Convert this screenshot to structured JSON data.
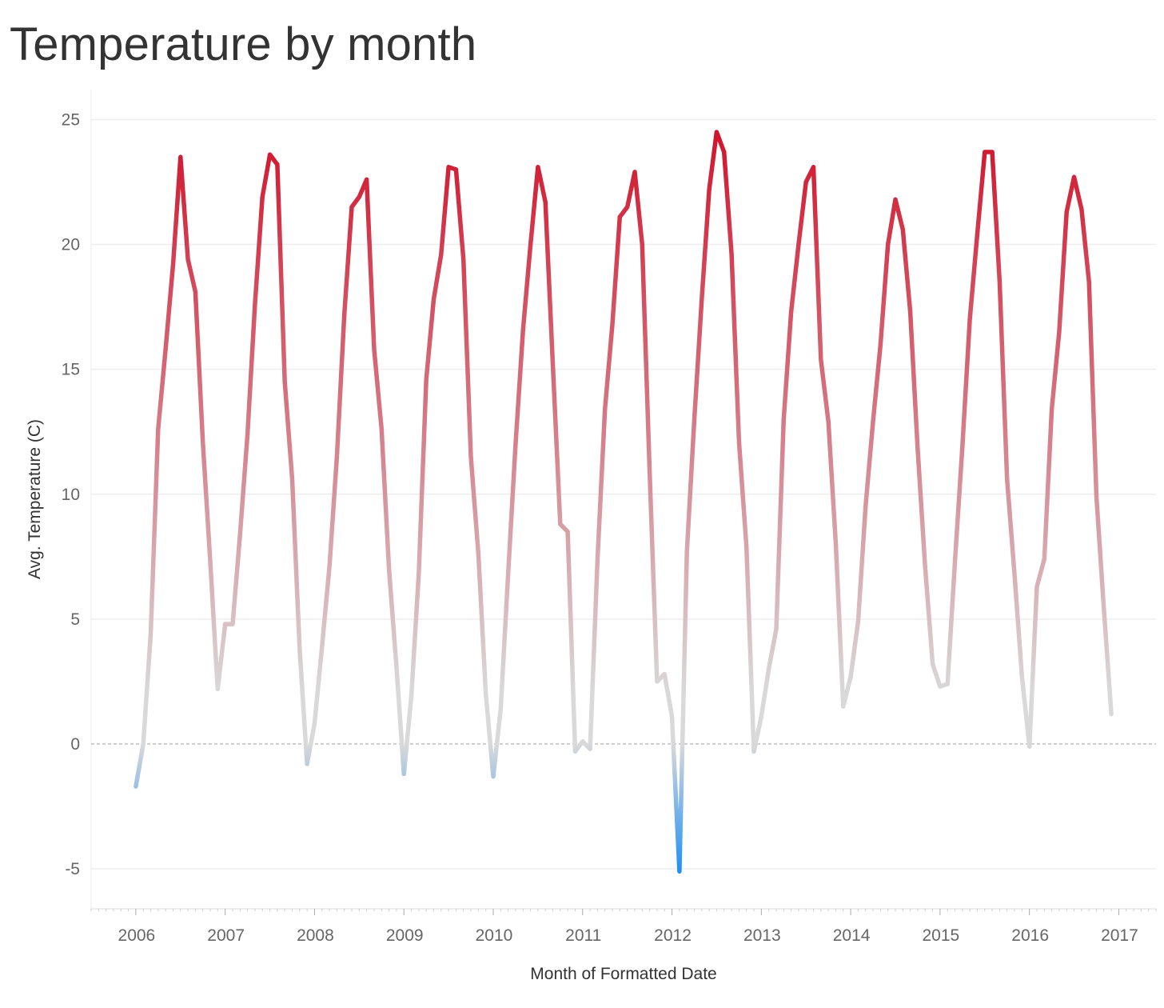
{
  "title": "Temperature by month",
  "chart_data": {
    "type": "line",
    "xlabel": "Month of Formatted Date",
    "ylabel": "Avg. Temperature (C)",
    "x_ticks": [
      "2006",
      "2007",
      "2008",
      "2009",
      "2010",
      "2011",
      "2012",
      "2013",
      "2014",
      "2015",
      "2016",
      "2017"
    ],
    "y_ticks": [
      25,
      20,
      15,
      10,
      5,
      0,
      -5
    ],
    "ylim": [
      -6.6,
      26.2
    ],
    "xlim": [
      "2005-07",
      "2017-06"
    ],
    "grid": true,
    "zero_line": true,
    "color_scale": {
      "low": "#1e8ff5",
      "mid": "#d9d9d9",
      "high": "#d0142c"
    },
    "series": [
      {
        "x": [
          "2006-01",
          "2006-02",
          "2006-03",
          "2006-04",
          "2006-05",
          "2006-06",
          "2006-07",
          "2006-08",
          "2006-09",
          "2006-10",
          "2006-11",
          "2006-12",
          "2007-01",
          "2007-02",
          "2007-03",
          "2007-04",
          "2007-05",
          "2007-06",
          "2007-07",
          "2007-08",
          "2007-09",
          "2007-10",
          "2007-11",
          "2007-12",
          "2008-01",
          "2008-02",
          "2008-03",
          "2008-04",
          "2008-05",
          "2008-06",
          "2008-07",
          "2008-08",
          "2008-09",
          "2008-10",
          "2008-11",
          "2008-12",
          "2009-01",
          "2009-02",
          "2009-03",
          "2009-04",
          "2009-05",
          "2009-06",
          "2009-07",
          "2009-08",
          "2009-09",
          "2009-10",
          "2009-11",
          "2009-12",
          "2010-01",
          "2010-02",
          "2010-03",
          "2010-04",
          "2010-05",
          "2010-06",
          "2010-07",
          "2010-08",
          "2010-09",
          "2010-10",
          "2010-11",
          "2010-12",
          "2011-01",
          "2011-02",
          "2011-03",
          "2011-04",
          "2011-05",
          "2011-06",
          "2011-07",
          "2011-08",
          "2011-09",
          "2011-10",
          "2011-11",
          "2011-12",
          "2012-01",
          "2012-02",
          "2012-03",
          "2012-04",
          "2012-05",
          "2012-06",
          "2012-07",
          "2012-08",
          "2012-09",
          "2012-10",
          "2012-11",
          "2012-12",
          "2013-01",
          "2013-02",
          "2013-03",
          "2013-04",
          "2013-05",
          "2013-06",
          "2013-07",
          "2013-08",
          "2013-09",
          "2013-10",
          "2013-11",
          "2013-12",
          "2014-01",
          "2014-02",
          "2014-03",
          "2014-04",
          "2014-05",
          "2014-06",
          "2014-07",
          "2014-08",
          "2014-09",
          "2014-10",
          "2014-11",
          "2014-12",
          "2015-01",
          "2015-02",
          "2015-03",
          "2015-04",
          "2015-05",
          "2015-06",
          "2015-07",
          "2015-08",
          "2015-09",
          "2015-10",
          "2015-11",
          "2015-12",
          "2016-01",
          "2016-02",
          "2016-03",
          "2016-04",
          "2016-05",
          "2016-06",
          "2016-07",
          "2016-08",
          "2016-09",
          "2016-10",
          "2016-11",
          "2016-12"
        ],
        "values": [
          -1.7,
          0.0,
          4.4,
          12.6,
          15.8,
          19.2,
          23.5,
          19.4,
          18.1,
          12.1,
          7.3,
          2.2,
          4.8,
          4.8,
          8.4,
          12.4,
          17.6,
          21.9,
          23.6,
          23.2,
          14.5,
          10.6,
          3.8,
          -0.8,
          0.8,
          3.9,
          7.1,
          11.5,
          17.2,
          21.5,
          21.9,
          22.6,
          15.8,
          12.6,
          7.0,
          3.1,
          -1.2,
          1.9,
          6.8,
          14.6,
          17.8,
          19.6,
          23.1,
          23.0,
          19.4,
          11.5,
          7.6,
          2.0,
          -1.3,
          1.4,
          6.8,
          12.0,
          16.6,
          20.0,
          23.1,
          21.7,
          15.2,
          8.8,
          8.5,
          -0.3,
          0.1,
          -0.2,
          7.4,
          13.4,
          16.8,
          21.1,
          21.5,
          22.9,
          20.0,
          10.9,
          2.5,
          2.8,
          1.1,
          -5.1,
          7.7,
          13.0,
          17.8,
          22.2,
          24.5,
          23.7,
          19.6,
          12.1,
          7.9,
          -0.3,
          1.1,
          3.0,
          4.6,
          13.0,
          17.3,
          20.0,
          22.5,
          23.1,
          15.4,
          12.9,
          8.0,
          1.5,
          2.7,
          4.9,
          9.5,
          12.9,
          16.0,
          20.0,
          21.8,
          20.6,
          17.3,
          11.8,
          7.1,
          3.2,
          2.3,
          2.4,
          7.3,
          11.9,
          17.0,
          20.4,
          23.7,
          23.7,
          18.5,
          10.6,
          6.8,
          2.7,
          -0.1,
          6.3,
          7.4,
          13.4,
          16.5,
          21.3,
          22.7,
          21.4,
          18.5,
          9.9,
          5.4,
          1.2
        ]
      }
    ]
  }
}
